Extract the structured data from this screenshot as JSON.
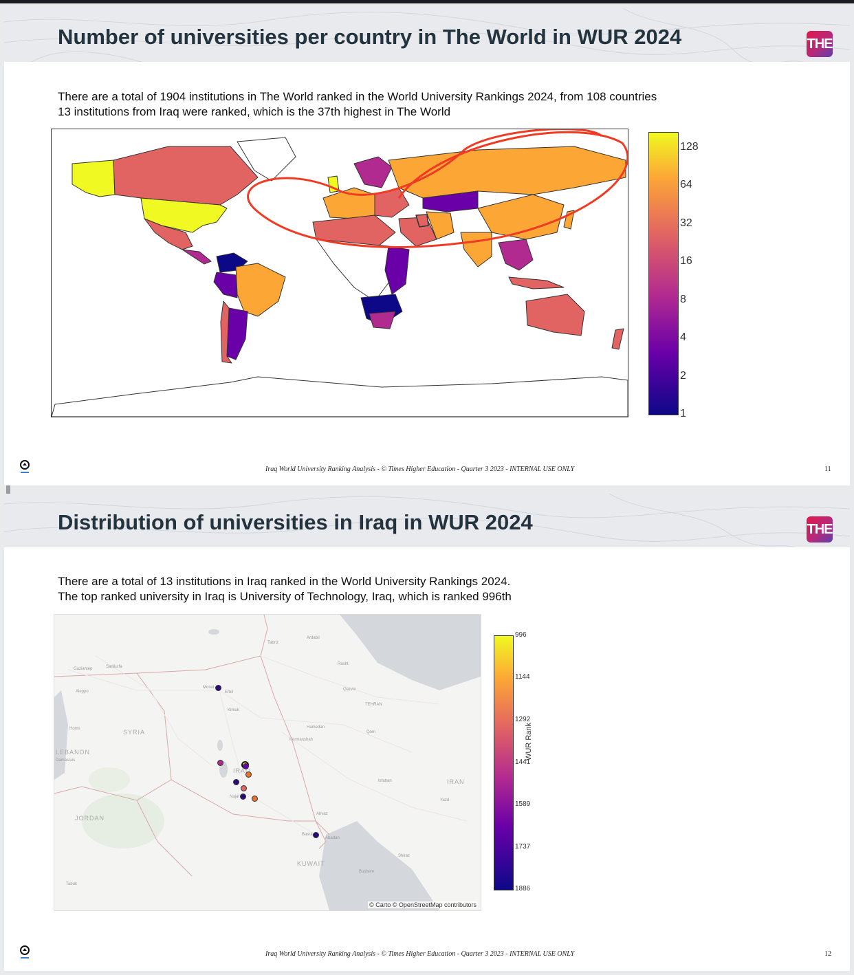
{
  "slides": [
    {
      "title": "Number of universities per country in The World in WUR 2024",
      "logo": "THE",
      "description_line1": "There are a total of 1904 institutions in The World ranked in the World University Rankings 2024, from 108 countries",
      "description_line2": "13 institutions from Iraq were ranked, which is the 37th highest in The World",
      "footer": "Iraq World University Ranking Analysis  -  © Times Higher Education - Quarter 3 2023 - INTERNAL USE ONLY",
      "page_number": "11",
      "colorbar_ticks": [
        "128",
        "64",
        "32",
        "16",
        "8",
        "4",
        "2",
        "1"
      ]
    },
    {
      "title": "Distribution of universities in Iraq in WUR 2024",
      "logo": "THE",
      "description_line1": "There are a total of 13 institutions in Iraq ranked in the World University Rankings 2024.",
      "description_line2": "The top ranked university in Iraq is University of Technology, Iraq, which is ranked 996th",
      "footer": "Iraq World University Ranking Analysis  -  © Times Higher Education - Quarter 3 2023 - INTERNAL USE ONLY",
      "page_number": "12",
      "colorbar_title": "WUR Rank",
      "colorbar_ticks": [
        "996",
        "1144",
        "1292",
        "1441",
        "1589",
        "1737",
        "1886"
      ],
      "attribution": "© Carto © OpenStreetMap contributors",
      "countries": [
        "SYRIA",
        "IRAQ",
        "IRAN",
        "JORDAN",
        "KUWAIT",
        "LEBANON"
      ],
      "cities": [
        "Tabriz",
        "Ardabil",
        "Rasht",
        "Qazvin",
        "TEHRAN",
        "Qom",
        "Hamedan",
        "Kermanshah",
        "Isfahan",
        "Yazd",
        "Ahvaz",
        "Abadan",
        "Basra",
        "Shiraz",
        "Bushehr",
        "Gaziantep",
        "Sanliurfa",
        "Aleppo",
        "Homs",
        "Damascus",
        "Mosul",
        "Erbil",
        "Kirkuk",
        "Najaf",
        "Tabuk"
      ]
    }
  ],
  "colors": {
    "title": "#24343f",
    "colorscale": [
      "#0d0887",
      "#6a00a8",
      "#b12a90",
      "#e16462",
      "#fca636",
      "#f0f921"
    ],
    "annotation": "#ef3b24"
  }
}
